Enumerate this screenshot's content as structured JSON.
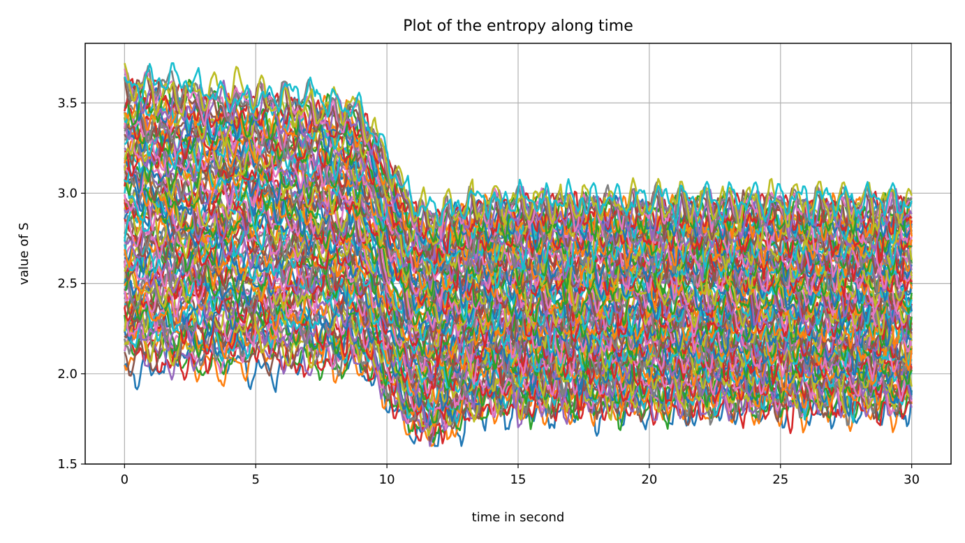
{
  "chart_data": {
    "type": "line",
    "title": "Plot of the entropy along time",
    "xlabel": "time in second",
    "ylabel": "value of S",
    "xlim": [
      -1.5,
      31.5
    ],
    "ylim": [
      1.5,
      3.83
    ],
    "xticks": [
      0,
      5,
      10,
      15,
      20,
      25,
      30
    ],
    "xtick_labels": [
      "0",
      "5",
      "10",
      "15",
      "20",
      "25",
      "30"
    ],
    "yticks": [
      1.5,
      2.0,
      2.5,
      3.0,
      3.5
    ],
    "ytick_labels": [
      "1.5",
      "2.0",
      "2.5",
      "3.0",
      "3.5"
    ],
    "grid": true,
    "legend": "none",
    "colors": [
      "#1f77b4",
      "#ff7f0e",
      "#2ca02c",
      "#d62728",
      "#9467bd",
      "#8c564b",
      "#e377c2",
      "#7f7f7f",
      "#bcbd22",
      "#17becf"
    ],
    "series_count": 100,
    "x_range": [
      0,
      30
    ],
    "phases": {
      "initial_start": 0,
      "transition_start": 8.5,
      "transition_end": 11.5,
      "final_start": 14.0
    },
    "envelope": {
      "t0_range": [
        2.08,
        3.62
      ],
      "peak_range_0_to_8s": [
        2.05,
        3.72
      ],
      "min_at_12_to_13s": 1.6,
      "final_range_15_to_30s": [
        1.78,
        3.0
      ]
    }
  }
}
